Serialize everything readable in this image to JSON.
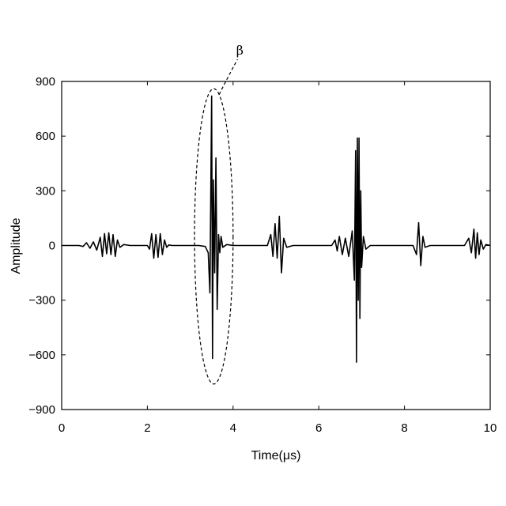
{
  "chart_data": {
    "type": "line",
    "title": "",
    "xlabel": "Time(μs)",
    "ylabel": "Amplitude",
    "xlim": [
      0,
      10
    ],
    "ylim": [
      -900,
      900
    ],
    "xticks": [
      0,
      2,
      4,
      6,
      8,
      10
    ],
    "yticks": [
      -900,
      -600,
      -300,
      0,
      300,
      600,
      900
    ],
    "xtick_labels": [
      "0",
      "2",
      "4",
      "6",
      "8",
      "10"
    ],
    "ytick_labels": [
      "−900",
      "−600",
      "−300",
      "0",
      "300",
      "600",
      "900"
    ],
    "grid": false,
    "line_color": "#000000",
    "series": [
      {
        "x": [
          0.0,
          0.4,
          0.5,
          0.58,
          0.66,
          0.74,
          0.82,
          0.9,
          0.95,
          1.0,
          1.05,
          1.1,
          1.15,
          1.2,
          1.25,
          1.3,
          1.36,
          1.45,
          1.6,
          2.0,
          2.05,
          2.1,
          2.15,
          2.2,
          2.25,
          2.3,
          2.35,
          2.4,
          2.45,
          2.5,
          2.58,
          2.7,
          3.2,
          3.35,
          3.42,
          3.46,
          3.5,
          3.52,
          3.54,
          3.57,
          3.6,
          3.63,
          3.66,
          3.69,
          3.72,
          3.76,
          3.85,
          4.0,
          4.8,
          4.88,
          4.93,
          4.98,
          5.03,
          5.08,
          5.13,
          5.18,
          5.25,
          5.4,
          6.3,
          6.38,
          6.43,
          6.48,
          6.55,
          6.62,
          6.7,
          6.78,
          6.83,
          6.86,
          6.88,
          6.9,
          6.92,
          6.94,
          6.96,
          6.98,
          7.0,
          7.04,
          7.1,
          7.2,
          8.2,
          8.28,
          8.33,
          8.38,
          8.43,
          8.48,
          8.6,
          9.4,
          9.5,
          9.56,
          9.62,
          9.66,
          9.7,
          9.74,
          9.78,
          9.84,
          9.9,
          10.0
        ],
        "y": [
          0,
          0,
          -5,
          15,
          -15,
          20,
          -25,
          45,
          -60,
          65,
          -45,
          70,
          -50,
          60,
          -60,
          30,
          -10,
          5,
          0,
          0,
          -20,
          65,
          -70,
          60,
          -65,
          65,
          -50,
          30,
          -10,
          3,
          0,
          0,
          0,
          -5,
          -40,
          -260,
          820,
          -620,
          360,
          -150,
          480,
          -350,
          60,
          -40,
          50,
          -10,
          5,
          0,
          0,
          60,
          -60,
          120,
          -70,
          160,
          -150,
          40,
          -10,
          0,
          0,
          30,
          -30,
          50,
          -50,
          40,
          -60,
          80,
          -190,
          520,
          -640,
          590,
          -300,
          590,
          -400,
          300,
          -120,
          50,
          -20,
          0,
          0,
          -50,
          125,
          -110,
          50,
          -10,
          0,
          0,
          40,
          -40,
          90,
          -70,
          70,
          -50,
          30,
          -20,
          5,
          0
        ]
      }
    ],
    "annotations": [
      {
        "text": "β",
        "ellipse_center": [
          3.55,
          50
        ],
        "ellipse_radius": [
          0.45,
          810
        ]
      }
    ]
  }
}
